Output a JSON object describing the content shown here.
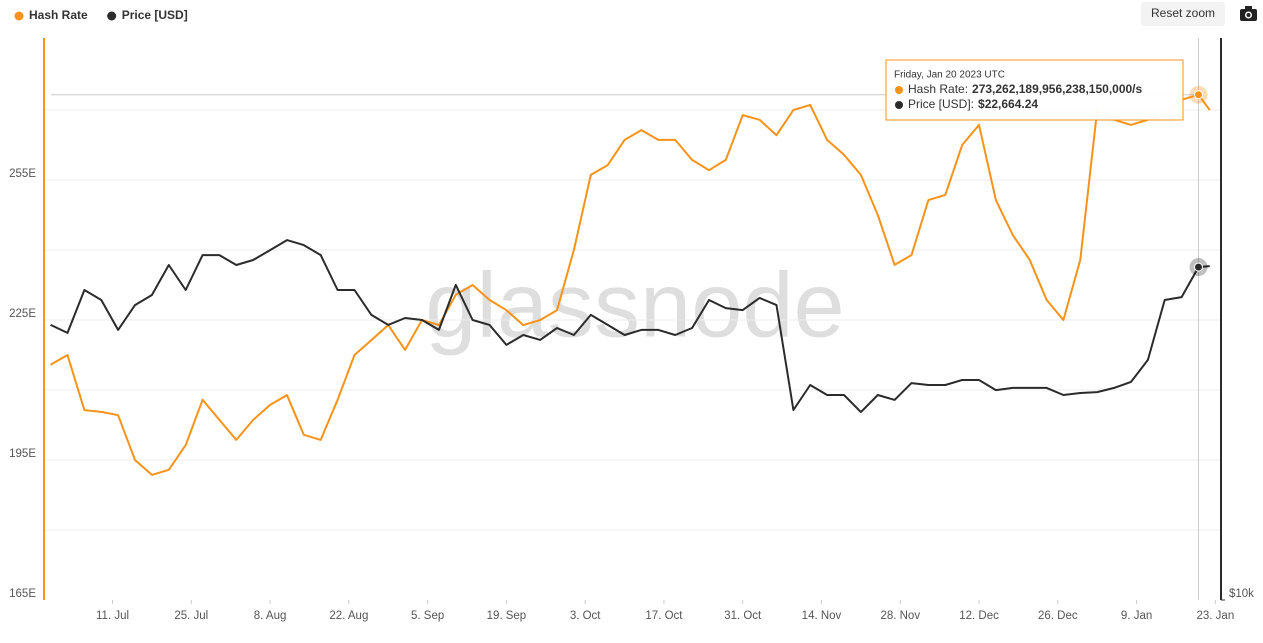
{
  "chart_data": {
    "type": "line",
    "x": [
      "2022-06-30",
      "2022-07-03",
      "2022-07-06",
      "2022-07-09",
      "2022-07-12",
      "2022-07-15",
      "2022-07-18",
      "2022-07-21",
      "2022-07-24",
      "2022-07-27",
      "2022-07-30",
      "2022-08-02",
      "2022-08-05",
      "2022-08-08",
      "2022-08-11",
      "2022-08-14",
      "2022-08-17",
      "2022-08-20",
      "2022-08-23",
      "2022-08-26",
      "2022-08-29",
      "2022-09-01",
      "2022-09-04",
      "2022-09-07",
      "2022-09-10",
      "2022-09-13",
      "2022-09-16",
      "2022-09-19",
      "2022-09-22",
      "2022-09-25",
      "2022-09-28",
      "2022-10-01",
      "2022-10-04",
      "2022-10-07",
      "2022-10-10",
      "2022-10-13",
      "2022-10-16",
      "2022-10-19",
      "2022-10-22",
      "2022-10-25",
      "2022-10-28",
      "2022-10-31",
      "2022-11-03",
      "2022-11-06",
      "2022-11-09",
      "2022-11-12",
      "2022-11-15",
      "2022-11-18",
      "2022-11-21",
      "2022-11-24",
      "2022-11-27",
      "2022-11-30",
      "2022-12-03",
      "2022-12-06",
      "2022-12-09",
      "2022-12-12",
      "2022-12-15",
      "2022-12-18",
      "2022-12-21",
      "2022-12-24",
      "2022-12-27",
      "2022-12-30",
      "2023-01-02",
      "2023-01-05",
      "2023-01-08",
      "2023-01-11",
      "2023-01-14",
      "2023-01-17",
      "2023-01-20",
      "2023-01-22"
    ],
    "series": [
      {
        "name": "Hash Rate",
        "color": "#f7931a",
        "axis": "y",
        "values": [
          215.4,
          217.5,
          205.7,
          205.3,
          204.6,
          195.0,
          191.8,
          192.9,
          198.2,
          207.9,
          203.6,
          199.3,
          203.6,
          206.8,
          208.9,
          200.4,
          199.3,
          207.9,
          217.5,
          220.7,
          223.9,
          218.6,
          225.0,
          223.9,
          230.4,
          232.5,
          229.3,
          227.1,
          223.9,
          225.0,
          227.1,
          240.0,
          256.1,
          258.2,
          263.6,
          265.7,
          263.6,
          263.6,
          259.3,
          257.1,
          259.3,
          268.9,
          267.9,
          264.6,
          270.0,
          271.1,
          263.6,
          260.4,
          256.1,
          247.5,
          236.8,
          238.9,
          250.7,
          251.8,
          262.5,
          266.8,
          250.7,
          243.2,
          237.9,
          229.3,
          225.0,
          237.9,
          270.0,
          267.9,
          266.8,
          267.9,
          268.9,
          272.2,
          273.26,
          270.0
        ]
      },
      {
        "name": "Price [USD]",
        "color": "#2b2b2b",
        "axis": "y2",
        "values": [
          19660,
          19280,
          21420,
          20900,
          19420,
          20640,
          21160,
          22780,
          21420,
          23340,
          23340,
          22780,
          23060,
          23630,
          24220,
          23920,
          23340,
          21420,
          21420,
          20150,
          19660,
          20000,
          19900,
          19420,
          21690,
          19900,
          19660,
          18720,
          19180,
          18950,
          19510,
          19180,
          20150,
          19660,
          19180,
          19420,
          19420,
          19180,
          19510,
          20900,
          20490,
          20390,
          21010,
          20640,
          15950,
          16960,
          16550,
          16550,
          15870,
          16550,
          16350,
          17040,
          16960,
          16960,
          17170,
          17170,
          16750,
          16840,
          16840,
          16840,
          16550,
          16630,
          16670,
          16840,
          17090,
          18040,
          20900,
          21050,
          22664.24,
          22720
        ]
      }
    ],
    "xlim": [
      "2022-06-29",
      "2023-01-24"
    ],
    "xticks": [
      {
        "value": "2022-07-11",
        "label": "11. Jul"
      },
      {
        "value": "2022-07-25",
        "label": "25. Jul"
      },
      {
        "value": "2022-08-08",
        "label": "8. Aug"
      },
      {
        "value": "2022-08-22",
        "label": "22. Aug"
      },
      {
        "value": "2022-09-05",
        "label": "5. Sep"
      },
      {
        "value": "2022-09-19",
        "label": "19. Sep"
      },
      {
        "value": "2022-10-03",
        "label": "3. Oct"
      },
      {
        "value": "2022-10-17",
        "label": "17. Oct"
      },
      {
        "value": "2022-10-31",
        "label": "31. Oct"
      },
      {
        "value": "2022-11-14",
        "label": "14. Nov"
      },
      {
        "value": "2022-11-28",
        "label": "28. Nov"
      },
      {
        "value": "2022-12-12",
        "label": "12. Dec"
      },
      {
        "value": "2022-12-26",
        "label": "26. Dec"
      },
      {
        "value": "2023-01-09",
        "label": "9. Jan"
      },
      {
        "value": "2023-01-23",
        "label": "23. Jan"
      }
    ],
    "ylim": [
      165,
      285
    ],
    "yticks": [
      {
        "value": 165,
        "label": "165E"
      },
      {
        "value": 195,
        "label": "195E"
      },
      {
        "value": 225,
        "label": "225E"
      },
      {
        "value": 255,
        "label": "255E"
      }
    ],
    "y_minor_ticks": [
      180,
      210,
      240,
      270
    ],
    "y2lim": [
      10000,
      39600
    ],
    "y2_log": true,
    "y2ticks": [
      {
        "value": 10000,
        "label": "$10k"
      }
    ],
    "grid": true,
    "legend": "top-left",
    "reset_zoom": "Reset zoom",
    "watermark": "glassnode",
    "tooltip": {
      "date": "Friday, Jan 20 2023 UTC",
      "index": 68,
      "rows": [
        {
          "label": "Hash Rate:",
          "value": "273,262,189,956,238,150,000/s"
        },
        {
          "label": "Price [USD]:",
          "value": "$22,664.24"
        }
      ]
    }
  }
}
